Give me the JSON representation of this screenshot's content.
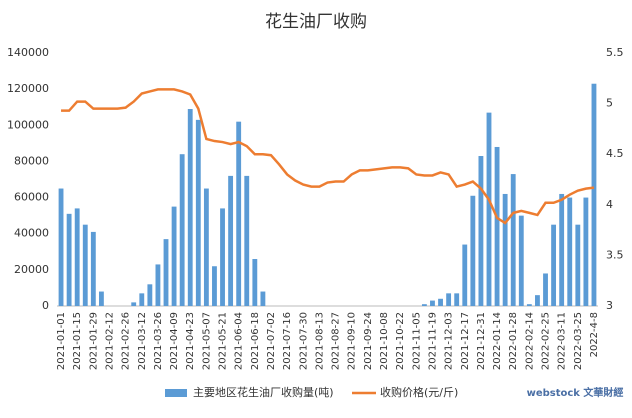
{
  "chart_data": {
    "type": "bar_line",
    "title": "花生油厂收购",
    "categories": [
      "2021-01-01",
      null,
      "2021-01-15",
      null,
      "2021-01-29",
      null,
      "2021-02-12",
      null,
      "2021-02-26",
      null,
      "2021-03-12",
      null,
      "2021-03-26",
      null,
      "2021-04-09",
      null,
      "2021-04-23",
      null,
      "2021-05-07",
      null,
      "2021-05-21",
      null,
      "2021-06-04",
      null,
      "2021-06-18",
      null,
      "2021-07-02",
      null,
      "2021-07-16",
      null,
      "2021-07-30",
      null,
      "2021-08-13",
      null,
      "2021-08-27",
      null,
      "2021-09-10",
      null,
      "2021-09-24",
      null,
      "2021-10-08",
      null,
      "2021-10-22",
      null,
      "2021-11-05",
      null,
      "2021-11-19",
      null,
      "2021-12-03",
      null,
      "2021-12-17",
      null,
      "2021-12-31",
      null,
      "2022-01-14",
      null,
      "2022-01-28",
      null,
      "2022-02-14",
      null,
      "2022-02-25",
      null,
      "2022-03-11",
      null,
      "2022-03-25",
      null,
      "2022-4-8"
    ],
    "series": [
      {
        "name": "主要地区花生油厂收购量(吨)",
        "type": "bar",
        "color": "#5b9bd5",
        "values": [
          65000,
          51000,
          54000,
          45000,
          41000,
          8000,
          0,
          0,
          0,
          2000,
          7000,
          12000,
          23000,
          37000,
          55000,
          84000,
          109000,
          103000,
          65000,
          22000,
          54000,
          72000,
          102000,
          72000,
          26000,
          8000,
          0,
          0,
          0,
          0,
          0,
          0,
          0,
          0,
          0,
          0,
          0,
          0,
          0,
          0,
          0,
          0,
          0,
          0,
          0,
          1000,
          3000,
          4000,
          7000,
          7000,
          34000,
          61000,
          83000,
          107000,
          88000,
          62000,
          73000,
          50000,
          1000,
          6000,
          18000,
          45000,
          62000,
          60000,
          45000,
          60000,
          123000
        ]
      },
      {
        "name": "收购价格(元/斤)",
        "type": "line",
        "axis": "y2",
        "color": "#ed7d31",
        "values": [
          4.93,
          4.93,
          5.02,
          5.02,
          4.95,
          4.95,
          4.95,
          4.95,
          4.96,
          5.02,
          5.1,
          5.12,
          5.14,
          5.14,
          5.14,
          5.12,
          5.09,
          4.95,
          4.65,
          4.63,
          4.62,
          4.6,
          4.62,
          4.58,
          4.5,
          4.5,
          4.49,
          4.4,
          4.3,
          4.24,
          4.2,
          4.18,
          4.18,
          4.22,
          4.23,
          4.23,
          4.3,
          4.34,
          4.34,
          4.35,
          4.36,
          4.37,
          4.37,
          4.36,
          4.3,
          4.29,
          4.29,
          4.32,
          4.3,
          4.18,
          4.2,
          4.23,
          4.16,
          4.05,
          3.87,
          3.82,
          3.92,
          3.94,
          3.92,
          3.9,
          4.02,
          4.02,
          4.05,
          4.1,
          4.14,
          4.16,
          4.17
        ]
      }
    ],
    "ylim": [
      0,
      140000
    ],
    "yticks": [
      0,
      20000,
      40000,
      60000,
      80000,
      100000,
      120000,
      140000
    ],
    "y2lim": [
      3,
      5.5
    ],
    "y2ticks": [
      3,
      3.5,
      4,
      4.5,
      5,
      5.5
    ],
    "grid": false,
    "legend": "bottom",
    "watermark": "webstock 文華財經"
  }
}
